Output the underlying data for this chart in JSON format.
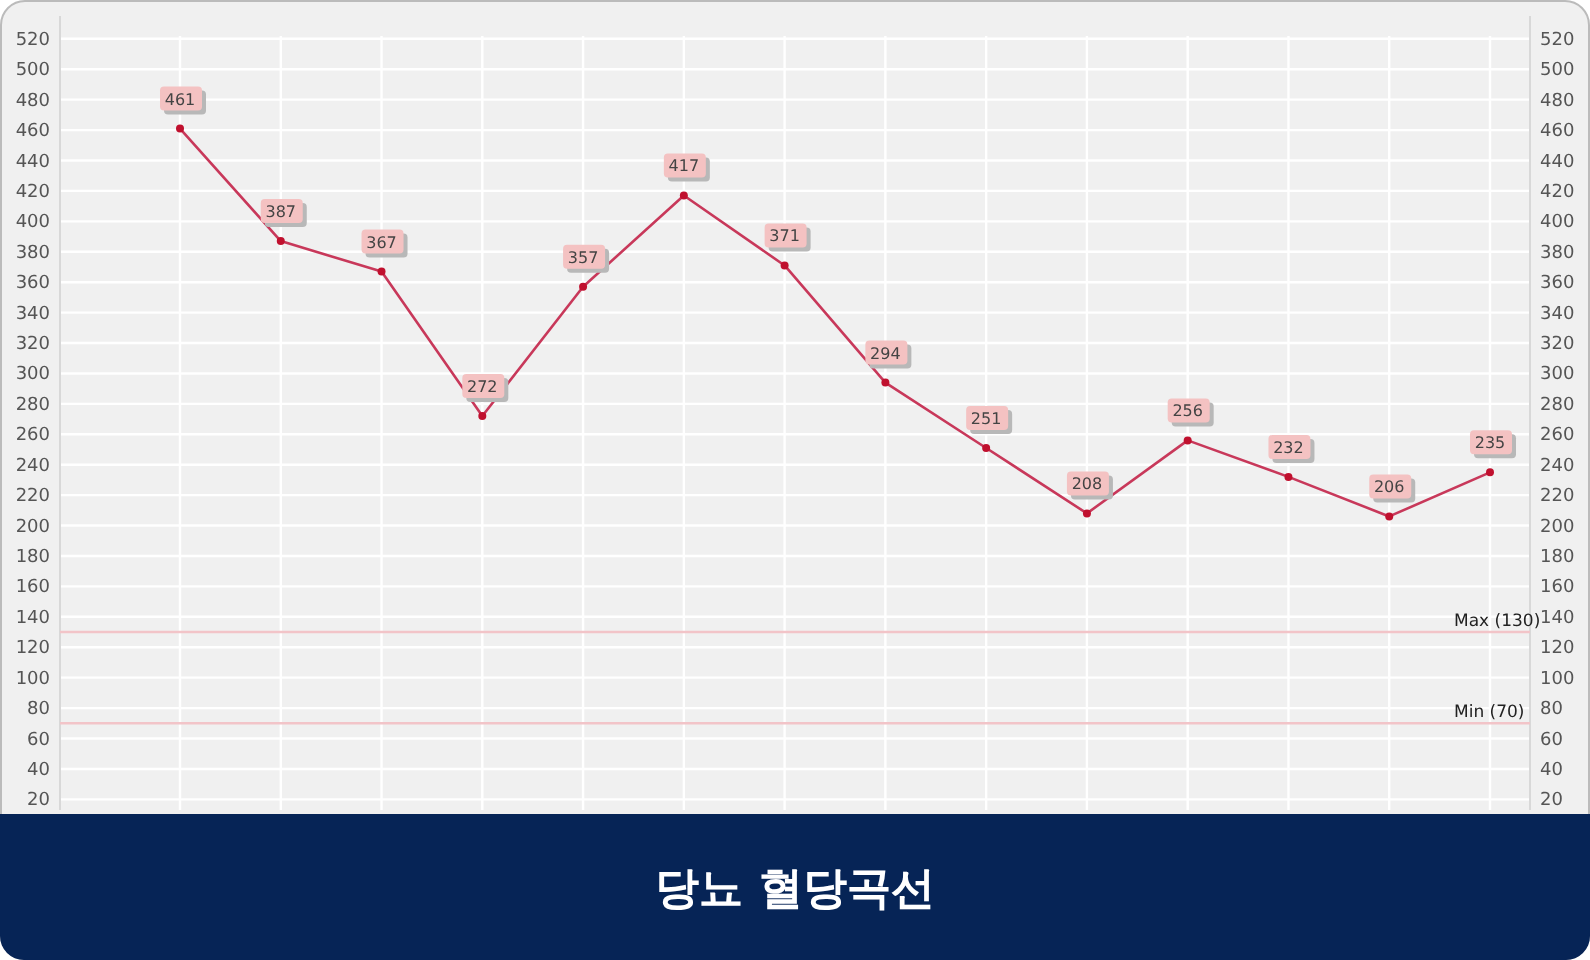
{
  "chart_data": {
    "type": "line",
    "title": "당뇨 혈당곡선",
    "categories": [
      null,
      null,
      null,
      null,
      null,
      null,
      null,
      null,
      null,
      null,
      null,
      null,
      null,
      null
    ],
    "series": [
      {
        "color": "#c8385a",
        "values": [
          461,
          387,
          367,
          272,
          357,
          417,
          371,
          294,
          251,
          208,
          256,
          232,
          206,
          235
        ]
      }
    ],
    "ylim": [
      13,
      535
    ],
    "yticks": [
      20,
      40,
      60,
      80,
      100,
      120,
      140,
      160,
      180,
      200,
      220,
      240,
      260,
      280,
      300,
      320,
      340,
      360,
      380,
      400,
      420,
      440,
      460,
      480,
      500,
      520
    ],
    "y2lim": [
      13,
      535
    ],
    "y2ticks": [
      20,
      40,
      60,
      80,
      100,
      120,
      140,
      160,
      180,
      200,
      220,
      240,
      260,
      280,
      300,
      320,
      340,
      360,
      380,
      400,
      420,
      440,
      460,
      480,
      500,
      520
    ],
    "ref_lines": [
      {
        "axis": "y",
        "value": 130,
        "label": "Max (130)",
        "color": "#f2c4c8"
      },
      {
        "axis": "y",
        "value": 70,
        "label": "Min (70)",
        "color": "#f2c4c8"
      }
    ],
    "grid": true,
    "marker": "circle",
    "line_style": "solid",
    "data_labels": true
  }
}
